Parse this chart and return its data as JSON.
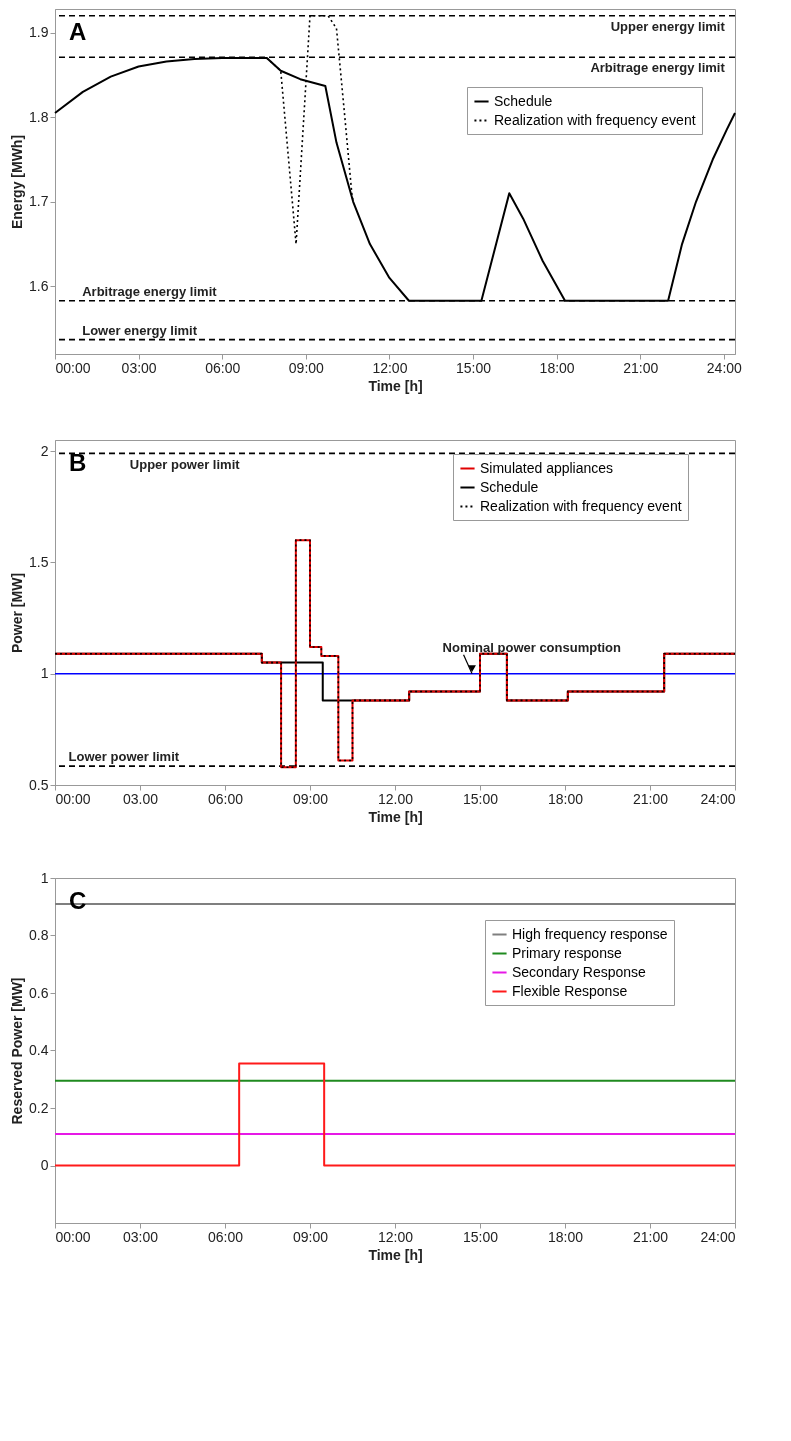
{
  "chart_data": [
    {
      "type": "line",
      "title": "A",
      "xlabel": "Time   [h]",
      "ylabel": "Energy   [MWh]",
      "xlim": [
        0,
        24.4
      ],
      "xticks": [
        {
          "value": 0,
          "label": "00:00"
        },
        {
          "value": 3,
          "label": "03:00"
        },
        {
          "value": 6,
          "label": "06:00"
        },
        {
          "value": 9,
          "label": "09:00"
        },
        {
          "value": 12,
          "label": "12:00"
        },
        {
          "value": 15,
          "label": "15:00"
        },
        {
          "value": 18,
          "label": "18:00"
        },
        {
          "value": 21,
          "label": "21:00"
        },
        {
          "value": 24,
          "label": "24:00"
        }
      ],
      "ylim": [
        1.52,
        1.928
      ],
      "yticks": [
        1.6,
        1.7,
        1.8,
        1.9
      ],
      "grid": false,
      "legend": "top right",
      "series": [
        {
          "name": "Schedule",
          "color": "#000000",
          "line_style": "solid",
          "x": [
            0,
            1,
            2,
            3,
            4,
            5,
            6,
            7.6,
            8.1,
            8.8,
            9.7,
            10.1,
            10.7,
            11.3,
            12,
            12.7,
            15.3,
            16.3,
            16.8,
            17.5,
            18.3,
            22,
            22.5,
            23,
            23.6,
            24.1,
            24.4
          ],
          "values": [
            1.805,
            1.83,
            1.848,
            1.86,
            1.866,
            1.869,
            1.87,
            1.87,
            1.855,
            1.845,
            1.837,
            1.77,
            1.7,
            1.65,
            1.61,
            1.583,
            1.583,
            1.71,
            1.68,
            1.63,
            1.583,
            1.583,
            1.65,
            1.7,
            1.75,
            1.785,
            1.805
          ]
        },
        {
          "name": "Realization with frequency event",
          "color": "#000000",
          "line_style": "dotted",
          "x": [
            7.6,
            8.1,
            8.65,
            9.15,
            9.8,
            10.1,
            10.4,
            10.65,
            10.7
          ],
          "values": [
            1.87,
            1.855,
            1.65,
            1.92,
            1.92,
            1.905,
            1.8,
            1.71,
            1.7
          ]
        }
      ],
      "ref_lines": [
        {
          "axis": "y",
          "value": 1.92,
          "label": "Upper energy limit",
          "color": "#000000",
          "line_style": "dashed"
        },
        {
          "axis": "y",
          "value": 1.871,
          "label": "Arbitrage energy limit",
          "color": "#000000",
          "line_style": "dashed"
        },
        {
          "axis": "y",
          "value": 1.583,
          "label": "Arbitrage energy limit",
          "color": "#000000",
          "line_style": "dashed"
        },
        {
          "axis": "y",
          "value": 1.537,
          "label": "Lower energy limit",
          "color": "#000000",
          "line_style": "dashed"
        }
      ]
    },
    {
      "type": "step",
      "title": "B",
      "xlabel": "Time   [h]",
      "ylabel": "Power   [MW]",
      "xlim": [
        0,
        24
      ],
      "xticks": [
        {
          "value": 0,
          "label": "00:00"
        },
        {
          "value": 3,
          "label": "03.00"
        },
        {
          "value": 6,
          "label": "06:00"
        },
        {
          "value": 9,
          "label": "09:00"
        },
        {
          "value": 12,
          "label": "12.00"
        },
        {
          "value": 15,
          "label": "15:00"
        },
        {
          "value": 18,
          "label": "18:00"
        },
        {
          "value": 21,
          "label": "21:00"
        },
        {
          "value": 24,
          "label": "24:00"
        }
      ],
      "ylim": [
        0.5,
        2.05
      ],
      "yticks": [
        0.5,
        1,
        1.5,
        2
      ],
      "grid": false,
      "legend": "top right",
      "series": [
        {
          "name": "Simulated appliances",
          "color": "#e00000",
          "line_style": "solid",
          "x": [
            0,
            7.3,
            7.98,
            8.5,
            9.0,
            9.4,
            10.0,
            10.5,
            12.5,
            15.0,
            15.95,
            18.1,
            21.5,
            24
          ],
          "values": [
            1.09,
            1.05,
            0.58,
            1.6,
            1.12,
            1.08,
            0.61,
            0.88,
            0.92,
            1.09,
            0.88,
            0.92,
            1.09,
            1.09
          ]
        },
        {
          "name": "Schedule",
          "color": "#000000",
          "line_style": "solid",
          "x": [
            0,
            7.3,
            9.45,
            12.5,
            15.0,
            15.95,
            18.1,
            21.5,
            24
          ],
          "values": [
            1.09,
            1.05,
            0.88,
            0.92,
            1.09,
            0.88,
            0.92,
            1.09,
            1.09
          ]
        },
        {
          "name": "Realization with frequency event",
          "color": "#000000",
          "line_style": "dotted",
          "x": [
            0,
            7.3,
            7.98,
            8.5,
            9.0,
            9.4,
            10.0,
            10.5,
            12.5,
            15.0,
            15.95,
            18.1,
            21.5,
            24
          ],
          "values": [
            1.09,
            1.05,
            0.58,
            1.6,
            1.12,
            1.08,
            0.61,
            0.88,
            0.92,
            1.09,
            0.88,
            0.92,
            1.09,
            1.09
          ]
        }
      ],
      "ref_lines": [
        {
          "axis": "y",
          "value": 1.99,
          "label": "Upper power limit",
          "color": "#000000",
          "line_style": "dashed"
        },
        {
          "axis": "y",
          "value": 1.0,
          "label": "Nominal power consumption",
          "color": "#0000ff",
          "line_style": "solid"
        },
        {
          "axis": "y",
          "value": 0.585,
          "label": "Lower power limit",
          "color": "#000000",
          "line_style": "dashed"
        }
      ]
    },
    {
      "type": "step",
      "title": "C",
      "xlabel": "Time   [h]",
      "ylabel": "Reserved Power   [MW]",
      "xlim": [
        0,
        24
      ],
      "xticks": [
        {
          "value": 0,
          "label": "00:00"
        },
        {
          "value": 3,
          "label": "03:00"
        },
        {
          "value": 6,
          "label": "06:00"
        },
        {
          "value": 9,
          "label": "09:00"
        },
        {
          "value": 12,
          "label": "12:00"
        },
        {
          "value": 15,
          "label": "15:00"
        },
        {
          "value": 18,
          "label": "18:00"
        },
        {
          "value": 21,
          "label": "21:00"
        },
        {
          "value": 24,
          "label": "24:00"
        }
      ],
      "ylim": [
        -0.2,
        1.0
      ],
      "yticks": [
        0,
        0.2,
        0.4,
        0.6,
        0.8,
        1
      ],
      "grid": false,
      "legend": "top right",
      "series": [
        {
          "name": "High frequency response",
          "color": "#7f7f7f",
          "line_style": "solid",
          "x": [
            0,
            24
          ],
          "values": [
            0.91,
            0.91
          ]
        },
        {
          "name": "Primary response",
          "color": "#1f8a1f",
          "line_style": "solid",
          "x": [
            0,
            24
          ],
          "values": [
            0.295,
            0.295
          ]
        },
        {
          "name": "Secondary Response",
          "color": "#e619e6",
          "line_style": "solid",
          "x": [
            0,
            24
          ],
          "values": [
            0.11,
            0.11
          ]
        },
        {
          "name": "Flexible Response",
          "color": "#ff1a1a",
          "line_style": "solid",
          "x": [
            0,
            6.5,
            9.5,
            24
          ],
          "values": [
            0,
            0.355,
            0,
            0
          ]
        }
      ]
    }
  ]
}
